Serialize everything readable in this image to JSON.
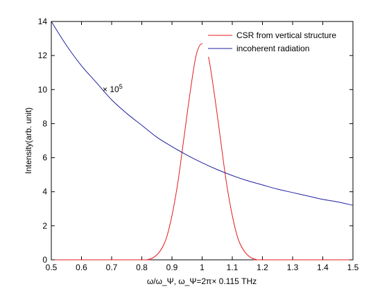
{
  "chart_data": {
    "type": "line",
    "title": "",
    "xlabel": "ω/ω_Ψ,   ω_Ψ=2π× 0.115 THz",
    "ylabel": "Intensity(arb. unit)",
    "xlim": [
      0.5,
      1.5
    ],
    "ylim": [
      0,
      14
    ],
    "xticks": [
      0.5,
      0.6,
      0.7,
      0.8,
      0.9,
      1,
      1.1,
      1.2,
      1.3,
      1.4,
      1.5
    ],
    "xtick_labels": [
      "0.5",
      "0.6",
      "0.7",
      "0.8",
      "0.9",
      "1",
      "1.1",
      "1.2",
      "1.3",
      "1.4",
      "1.5"
    ],
    "yticks": [
      0,
      2,
      4,
      6,
      8,
      10,
      12,
      14
    ],
    "ytick_labels": [
      "0",
      "2",
      "4",
      "6",
      "8",
      "10",
      "12",
      "14"
    ],
    "grid": false,
    "legend_position": "top-right",
    "annotation": {
      "text": "× 10",
      "superscript": "5",
      "x": 0.67,
      "y": 10.0
    },
    "series": [
      {
        "name": "CSR from vertical structure",
        "color": "#e41a1c",
        "x": [
          0.5,
          0.8,
          0.82,
          0.84,
          0.86,
          0.88,
          0.9,
          0.92,
          0.94,
          0.96,
          0.98,
          1.0,
          1.02,
          1.04,
          1.06,
          1.08,
          1.1,
          1.12,
          1.14,
          1.16,
          1.18,
          1.2,
          1.5
        ],
        "y": [
          0,
          0,
          0.02,
          0.15,
          0.5,
          1.2,
          2.6,
          4.6,
          7.2,
          9.8,
          12.0,
          12.7,
          12.0,
          9.8,
          7.2,
          4.6,
          2.6,
          1.2,
          0.5,
          0.15,
          0.02,
          0,
          0
        ]
      },
      {
        "name": "incoherent radiation",
        "color": "#1f1f9f",
        "x": [
          0.5,
          0.55,
          0.6,
          0.65,
          0.7,
          0.75,
          0.8,
          0.85,
          0.9,
          0.95,
          1.0,
          1.05,
          1.1,
          1.15,
          1.2,
          1.25,
          1.3,
          1.35,
          1.4,
          1.45,
          1.5
        ],
        "y": [
          14.0,
          12.6,
          11.4,
          10.4,
          9.4,
          8.6,
          7.9,
          7.2,
          6.65,
          6.15,
          5.7,
          5.3,
          4.95,
          4.65,
          4.4,
          4.15,
          3.95,
          3.75,
          3.55,
          3.4,
          3.2
        ]
      }
    ]
  }
}
